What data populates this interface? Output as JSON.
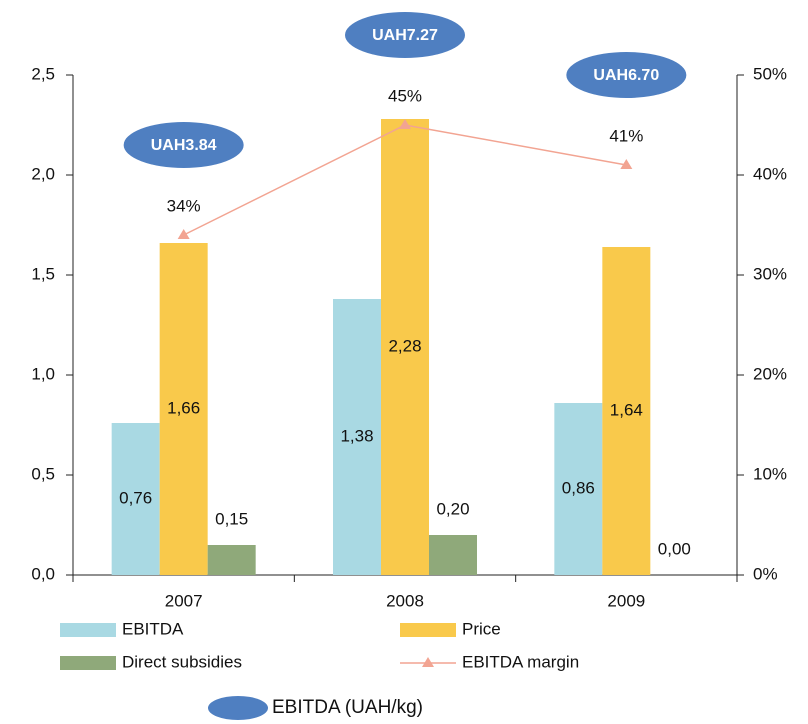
{
  "chart_data": {
    "type": "bar",
    "categories": [
      "2007",
      "2008",
      "2009"
    ],
    "series": [
      {
        "name": "EBITDA",
        "color": "#a9d9e3",
        "values": [
          0.76,
          1.38,
          0.86
        ],
        "value_labels": [
          "0,76",
          "1,38",
          "0,86"
        ]
      },
      {
        "name": "Price",
        "color": "#f9c94b",
        "values": [
          1.66,
          2.28,
          1.64
        ],
        "value_labels": [
          "1,66",
          "2,28",
          "1,64"
        ]
      },
      {
        "name": "Direct subsidies",
        "color": "#8fa97a",
        "values": [
          0.15,
          0.2,
          0.0
        ],
        "value_labels": [
          "0,15",
          "0,20",
          "0,00"
        ]
      },
      {
        "name": "EBITDA margin",
        "type": "line",
        "axis": "y2",
        "color": "#f2a492",
        "values": [
          34,
          45,
          41
        ],
        "value_labels": [
          "34%",
          "45%",
          "41%"
        ]
      }
    ],
    "ylim": [
      0,
      2.5
    ],
    "yticks": [
      {
        "value": 0,
        "label": "0,0"
      },
      {
        "value": 0.5,
        "label": "0,5"
      },
      {
        "value": 1,
        "label": "1,0"
      },
      {
        "value": 1.5,
        "label": "1,5"
      },
      {
        "value": 2,
        "label": "2,0"
      },
      {
        "value": 2.5,
        "label": "2,5"
      }
    ],
    "y2lim": [
      0,
      50
    ],
    "y2ticks": [
      {
        "value": 0,
        "label": "0%"
      },
      {
        "value": 10,
        "label": "10%"
      },
      {
        "value": 20,
        "label": "20%"
      },
      {
        "value": 30,
        "label": "30%"
      },
      {
        "value": 40,
        "label": "40%"
      },
      {
        "value": 50,
        "label": "50%"
      }
    ],
    "annotations": [
      "UAH3.84",
      "UAH7.27",
      "UAH6.70"
    ],
    "annotation_legend": "EBITDA (UAH/kg)",
    "annotation_color": "#4f7fc1"
  }
}
